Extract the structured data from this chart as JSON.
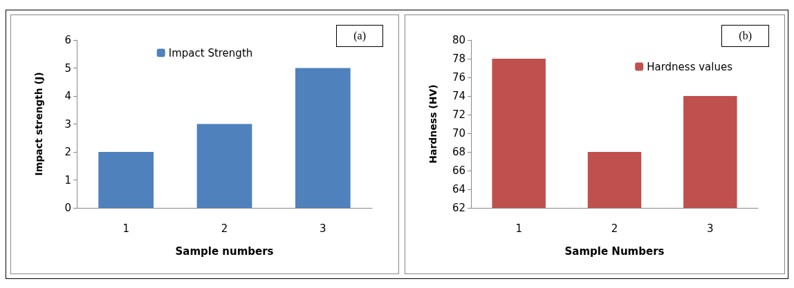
{
  "chart_data": [
    {
      "type": "bar",
      "xlabel": "Sample numbers",
      "ylabel": "Impact strength (J)",
      "categories": [
        "1",
        "2",
        "3"
      ],
      "series": [
        {
          "name": "Impact Strength",
          "color": "#4f81bd",
          "values": [
            2,
            3,
            5
          ]
        }
      ],
      "ylim": [
        0,
        6
      ],
      "yticks": [
        0,
        1,
        2,
        3,
        4,
        5,
        6
      ],
      "grid": false,
      "legend": "top",
      "annotations": [
        "(a)"
      ]
    },
    {
      "type": "bar",
      "xlabel": "Sample Numbers",
      "ylabel": "Hardness (HV)",
      "categories": [
        "1",
        "2",
        "3"
      ],
      "series": [
        {
          "name": "Hardness values",
          "color": "#c0504d",
          "values": [
            78,
            68,
            74
          ]
        }
      ],
      "ylim": [
        62,
        80
      ],
      "yticks": [
        62,
        64,
        66,
        68,
        70,
        72,
        74,
        76,
        78,
        80
      ],
      "grid": false,
      "legend": "top right",
      "annotations": [
        "(b)"
      ]
    }
  ]
}
